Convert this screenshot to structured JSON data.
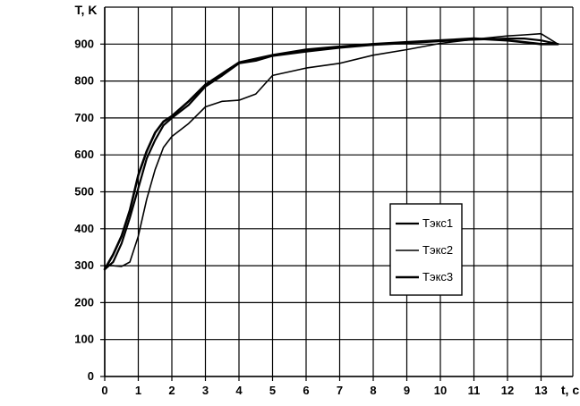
{
  "chart_data": {
    "type": "line",
    "xlabel": "t, c",
    "ylabel": "T, K",
    "xlim": [
      0,
      14
    ],
    "ylim": [
      0,
      1000
    ],
    "x_ticks": [
      "0",
      "1",
      "2",
      "3",
      "4",
      "5",
      "6",
      "7",
      "8",
      "9",
      "10",
      "11",
      "12",
      "13"
    ],
    "y_ticks": [
      "0",
      "100",
      "200",
      "300",
      "400",
      "500",
      "600",
      "700",
      "800",
      "900"
    ],
    "grid": true,
    "legend": {
      "position": "center-right"
    },
    "series": [
      {
        "name": "Тэкс1",
        "x": [
          0,
          0.25,
          0.5,
          0.75,
          1.0,
          1.25,
          1.5,
          1.75,
          2.0,
          2.5,
          3.0,
          3.5,
          4.0,
          4.5,
          5.0,
          6.0,
          7.0,
          8.0,
          9.0,
          10.0,
          11.0,
          12.0,
          12.5,
          13.0,
          13.5
        ],
        "y": [
          290,
          310,
          360,
          430,
          510,
          590,
          640,
          680,
          700,
          735,
          785,
          815,
          848,
          855,
          868,
          880,
          890,
          898,
          903,
          908,
          912,
          915,
          915,
          910,
          900
        ]
      },
      {
        "name": "Тэкс2",
        "x": [
          0,
          0.25,
          0.5,
          0.75,
          1.0,
          1.25,
          1.5,
          1.75,
          2.0,
          2.5,
          3.0,
          3.5,
          4.0,
          4.5,
          5.0,
          6.0,
          7.0,
          8.0,
          9.0,
          10.0,
          11.0,
          12.0,
          12.5,
          13.0,
          13.5
        ],
        "y": [
          300,
          300,
          298,
          310,
          380,
          480,
          560,
          620,
          650,
          685,
          730,
          745,
          748,
          765,
          815,
          835,
          848,
          870,
          885,
          902,
          913,
          922,
          925,
          928,
          900
        ]
      },
      {
        "name": "Тэкс3",
        "x": [
          0,
          0.25,
          0.5,
          0.75,
          1.0,
          1.25,
          1.5,
          1.75,
          2.0,
          2.5,
          3.0,
          3.5,
          4.0,
          5.0,
          6.0,
          7.0,
          8.0,
          9.0,
          10.0,
          11.0,
          12.0,
          12.5,
          13.0,
          13.5
        ],
        "y": [
          290,
          330,
          380,
          450,
          545,
          610,
          660,
          690,
          705,
          745,
          790,
          820,
          850,
          870,
          885,
          893,
          900,
          905,
          910,
          915,
          910,
          905,
          900,
          900
        ]
      }
    ]
  }
}
